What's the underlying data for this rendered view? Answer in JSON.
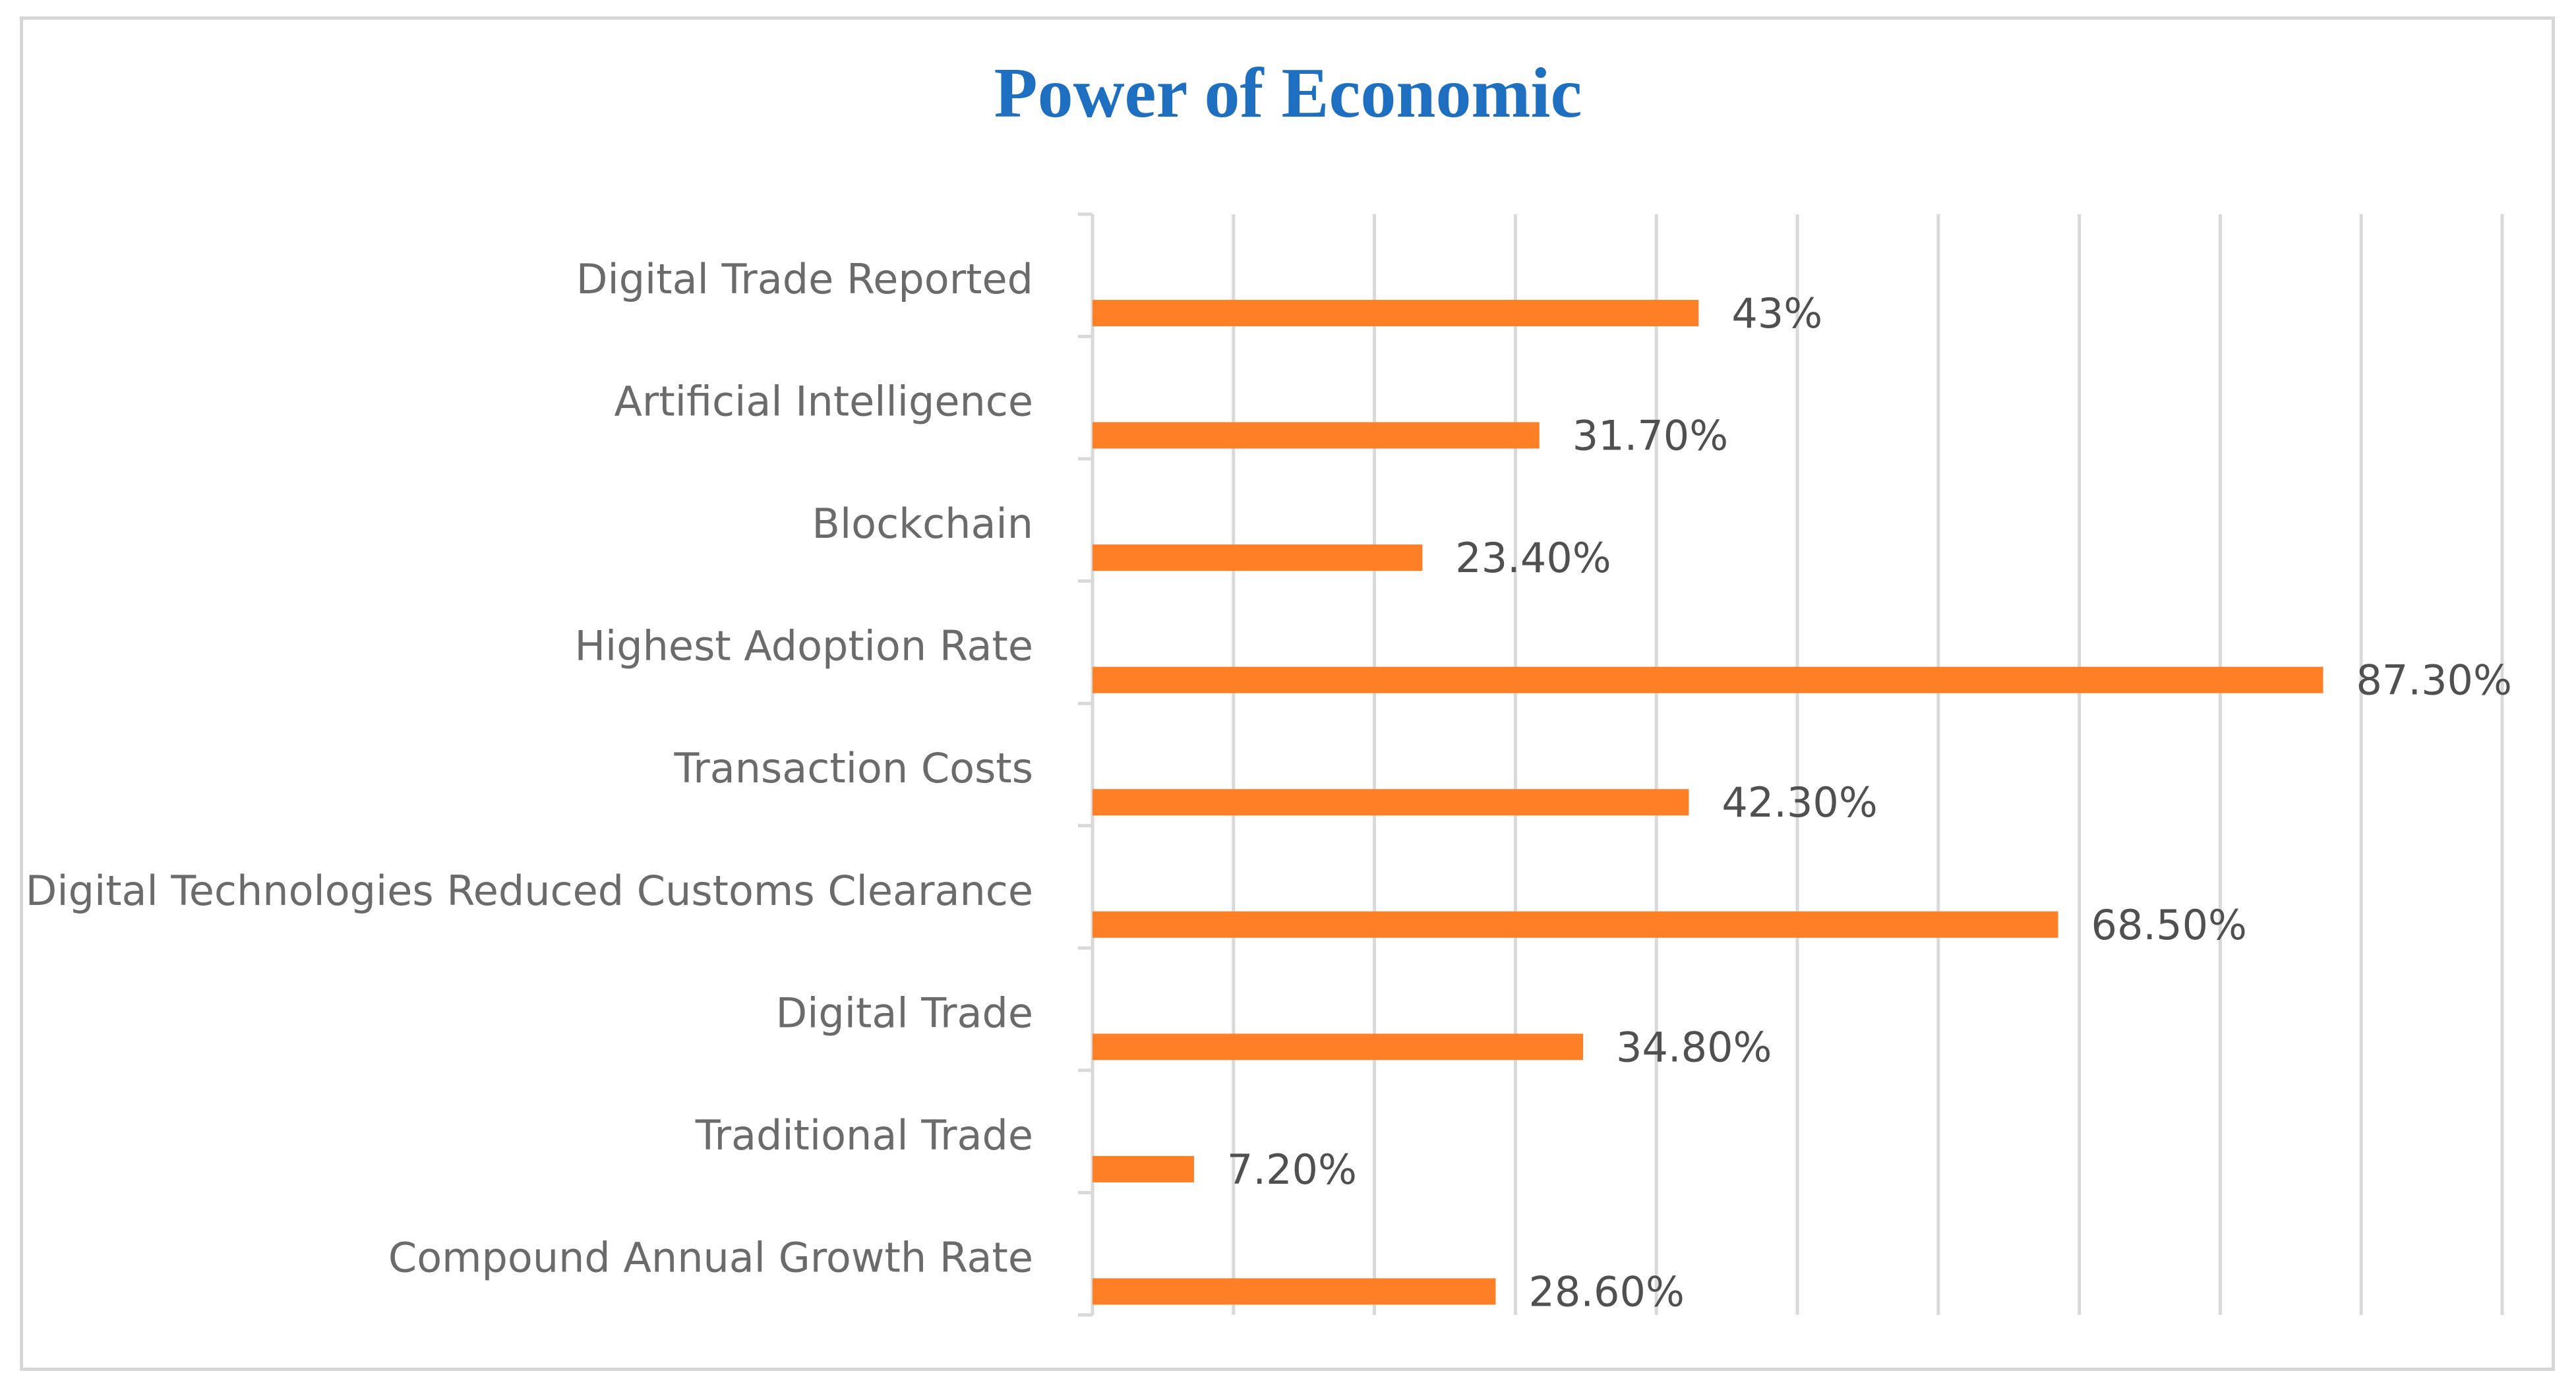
{
  "chart_data": {
    "type": "bar",
    "orientation": "horizontal",
    "title": "Power of Economic",
    "categories": [
      "Digital Trade Reported",
      "Artificial Intelligence",
      "Blockchain",
      "Highest Adoption Rate",
      "Transaction Costs",
      "Digital Technologies Reduced Customs Clearance",
      "Digital Trade",
      "Traditional Trade",
      "Compound Annual Growth Rate"
    ],
    "values": [
      43,
      31.7,
      23.4,
      87.3,
      42.3,
      68.5,
      34.8,
      7.2,
      28.6
    ],
    "data_labels": [
      "43%",
      "31.70%",
      "23.40%",
      "87.30%",
      "42.30%",
      "68.50%",
      "34.80%",
      "7.20%",
      "28.60%"
    ],
    "xlim": [
      0,
      100
    ],
    "x_gridline_step": 10,
    "xlabel": "",
    "ylabel": "",
    "grid": true,
    "legend": "none",
    "bar_color": "#ff7f27",
    "title_color": "#1f6fc1",
    "gridline_color": "#d9d9d9"
  }
}
